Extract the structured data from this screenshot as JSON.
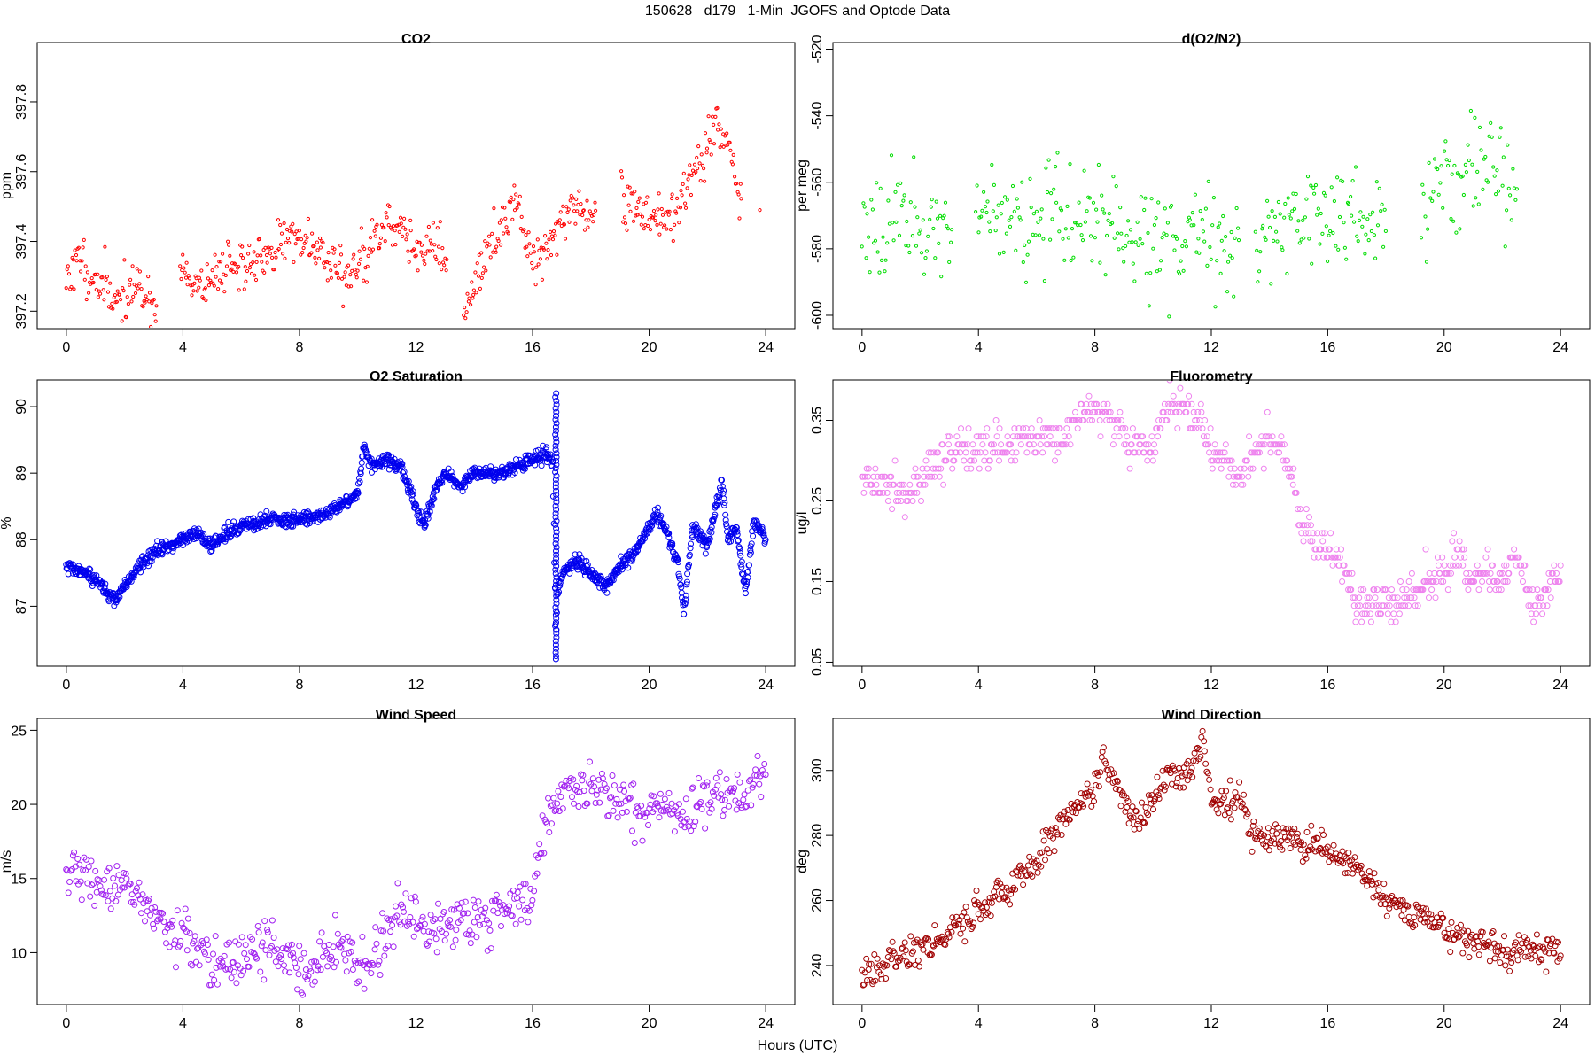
{
  "page": {
    "title": "150628   d179   1-Min  JGOFS and Optode Data",
    "xlabel": "Hours (UTC)"
  },
  "chart_data": [
    {
      "id": "co2",
      "type": "scatter",
      "title": "CO2",
      "ylabel": "ppm",
      "color": "#ff0000",
      "xlim": [
        -1,
        25
      ],
      "ylim": [
        397.15,
        397.97
      ],
      "xticks": [
        0,
        4,
        8,
        12,
        16,
        20,
        24
      ],
      "yticks": [
        397.2,
        397.4,
        397.6,
        397.8
      ],
      "ytick_labels": [
        "397.2",
        "397.4",
        "397.6",
        "397.8"
      ],
      "ytick_rotated": true,
      "point_radius": 1.6,
      "gaps": [
        [
          3.1,
          3.9
        ],
        [
          13.1,
          13.6
        ],
        [
          18.2,
          19.0
        ],
        [
          23.2,
          23.8
        ]
      ],
      "x": [
        0.0,
        0.5,
        1.0,
        1.5,
        2.0,
        2.5,
        3.0,
        4.0,
        4.5,
        5.0,
        5.5,
        6.0,
        6.5,
        7.0,
        7.5,
        8.0,
        8.5,
        9.0,
        9.5,
        10.0,
        10.5,
        11.0,
        11.5,
        12.0,
        12.5,
        13.0,
        13.7,
        14.0,
        14.5,
        15.0,
        15.5,
        16.0,
        16.5,
        17.0,
        17.5,
        18.0,
        19.0,
        19.5,
        20.0,
        20.5,
        21.0,
        21.5,
        22.0,
        22.3,
        22.7,
        23.0,
        23.8
      ],
      "values": [
        397.3,
        397.35,
        397.28,
        397.25,
        397.24,
        397.29,
        397.18,
        397.33,
        397.27,
        397.3,
        397.34,
        397.35,
        397.32,
        397.37,
        397.41,
        397.4,
        397.4,
        397.36,
        397.3,
        397.34,
        397.38,
        397.46,
        397.45,
        397.36,
        397.4,
        397.35,
        397.19,
        397.28,
        397.37,
        397.45,
        397.52,
        397.35,
        397.38,
        397.46,
        397.51,
        397.47,
        397.51,
        397.5,
        397.47,
        397.48,
        397.5,
        397.6,
        397.65,
        397.75,
        397.7,
        397.55,
        397.49
      ],
      "noise": 0.035,
      "seed": 11,
      "density": 30
    },
    {
      "id": "do2n2",
      "type": "scatter",
      "title": "d(O2/N2)",
      "ylabel": "per meg",
      "color": "#00dd00",
      "xlim": [
        -1,
        25
      ],
      "ylim": [
        -604,
        -518
      ],
      "xticks": [
        0,
        4,
        8,
        12,
        16,
        20,
        24
      ],
      "yticks": [
        -600,
        -580,
        -560,
        -540,
        -520
      ],
      "ytick_labels": [
        "-600",
        "-580",
        "-560",
        "-540",
        "-520"
      ],
      "ytick_rotated": true,
      "point_radius": 1.6,
      "gaps": [
        [
          3.1,
          3.9
        ],
        [
          13.0,
          13.5
        ],
        [
          18.0,
          19.2
        ],
        [
          22.8,
          23.7
        ]
      ],
      "x": [
        0.0,
        1.0,
        2.0,
        3.0,
        4.0,
        5.0,
        6.0,
        7.0,
        8.0,
        9.0,
        10.0,
        11.0,
        12.0,
        13.0,
        13.6,
        14.5,
        15.5,
        16.5,
        17.5,
        18.0,
        19.3,
        20.0,
        20.5,
        21.0,
        21.5,
        22.0,
        22.5
      ],
      "values": [
        -569,
        -570,
        -571,
        -572,
        -572,
        -571,
        -569,
        -571,
        -572,
        -574,
        -576,
        -578,
        -577,
        -578,
        -577,
        -574,
        -571,
        -568,
        -569,
        -570,
        -565,
        -563,
        -560,
        -555,
        -553,
        -556,
        -562
      ],
      "noise": 8,
      "seed": 23,
      "density": 22
    },
    {
      "id": "o2sat",
      "type": "scatter",
      "title": "O2 Saturation",
      "ylabel": "%",
      "color": "#0000ee",
      "xlim": [
        -1,
        25
      ],
      "ylim": [
        86.1,
        90.4
      ],
      "xticks": [
        0,
        4,
        8,
        12,
        16,
        20,
        24
      ],
      "yticks": [
        87,
        88,
        89,
        90
      ],
      "ytick_labels": [
        "87",
        "88",
        "89",
        "90"
      ],
      "ytick_rotated": true,
      "point_radius": 3,
      "gaps": [],
      "x": [
        0.0,
        0.5,
        1.0,
        1.7,
        2.0,
        2.5,
        3.0,
        4.0,
        4.5,
        5.0,
        5.5,
        6.0,
        7.0,
        8.0,
        9.0,
        10.0,
        10.2,
        10.5,
        11.0,
        11.5,
        12.0,
        12.3,
        12.7,
        13.0,
        13.5,
        14.0,
        15.0,
        15.5,
        16.0,
        16.5,
        16.7,
        16.8,
        16.85,
        17.0,
        17.5,
        18.0,
        18.5,
        19.0,
        19.5,
        20.0,
        20.3,
        20.6,
        21.0,
        21.2,
        21.5,
        22.0,
        22.5,
        22.7,
        23.0,
        23.3,
        23.6,
        24.0
      ],
      "values": [
        87.6,
        87.5,
        87.4,
        87.1,
        87.3,
        87.6,
        87.8,
        88.0,
        88.1,
        87.9,
        88.1,
        88.2,
        88.3,
        88.3,
        88.4,
        88.7,
        89.4,
        89.1,
        89.2,
        89.1,
        88.5,
        88.2,
        88.8,
        89.0,
        88.8,
        89.0,
        89.0,
        89.1,
        89.2,
        89.3,
        89.1,
        86.3,
        87.2,
        87.5,
        87.7,
        87.5,
        87.3,
        87.6,
        87.8,
        88.2,
        88.4,
        88.1,
        87.6,
        86.9,
        88.2,
        87.9,
        88.9,
        88.0,
        88.2,
        87.2,
        88.3,
        88.0
      ],
      "noise": 0.05,
      "seed": 37,
      "density": 60,
      "vertical_spike": {
        "x": 16.8,
        "y_from": 86.25,
        "y_to": 90.2
      }
    },
    {
      "id": "fluor",
      "type": "scatter",
      "title": "Fluorometry",
      "ylabel": "ug/l",
      "color": "#ee82ee",
      "xlim": [
        -1,
        25
      ],
      "ylim": [
        0.045,
        0.4
      ],
      "xticks": [
        0,
        4,
        8,
        12,
        16,
        20,
        24
      ],
      "yticks": [
        0.05,
        0.15,
        0.25,
        0.35
      ],
      "ytick_labels": [
        "0.05",
        "0.15",
        "0.25",
        "0.35"
      ],
      "ytick_rotated": true,
      "point_radius": 3,
      "quantize": 0.01,
      "gaps": [],
      "x": [
        0.0,
        1.0,
        2.0,
        2.7,
        3.3,
        4.0,
        5.0,
        6.0,
        7.0,
        7.5,
        8.0,
        8.5,
        9.0,
        10.0,
        10.5,
        11.0,
        11.5,
        12.0,
        12.5,
        13.0,
        13.5,
        14.0,
        14.5,
        15.0,
        15.5,
        16.0,
        16.5,
        17.0,
        18.0,
        19.0,
        20.0,
        20.5,
        21.0,
        21.5,
        22.0,
        22.5,
        23.0,
        23.5,
        24.0
      ],
      "values": [
        0.28,
        0.26,
        0.27,
        0.3,
        0.32,
        0.31,
        0.32,
        0.33,
        0.33,
        0.36,
        0.36,
        0.36,
        0.32,
        0.32,
        0.37,
        0.37,
        0.36,
        0.31,
        0.3,
        0.28,
        0.32,
        0.32,
        0.31,
        0.24,
        0.2,
        0.19,
        0.18,
        0.12,
        0.12,
        0.13,
        0.17,
        0.18,
        0.15,
        0.16,
        0.15,
        0.18,
        0.12,
        0.13,
        0.17
      ],
      "noise": 0.012,
      "seed": 51,
      "density": 30
    },
    {
      "id": "windspeed",
      "type": "scatter",
      "title": "Wind Speed",
      "ylabel": "m/s",
      "color": "#a020f0",
      "xlim": [
        -1,
        25
      ],
      "ylim": [
        6.5,
        25.8
      ],
      "xticks": [
        0,
        4,
        8,
        12,
        16,
        20,
        24
      ],
      "yticks": [
        10,
        15,
        20,
        25
      ],
      "ytick_labels": [
        "10",
        "15",
        "20",
        "25"
      ],
      "ytick_rotated": false,
      "point_radius": 3,
      "gaps": [],
      "x": [
        0.0,
        1.0,
        2.0,
        3.0,
        4.0,
        5.0,
        5.5,
        6.0,
        6.5,
        7.0,
        7.5,
        8.0,
        8.5,
        9.0,
        9.5,
        10.0,
        10.5,
        11.0,
        11.5,
        12.0,
        13.0,
        14.0,
        15.0,
        16.0,
        16.5,
        17.0,
        18.0,
        19.0,
        19.5,
        20.0,
        21.0,
        22.0,
        23.0,
        24.0
      ],
      "values": [
        16,
        14.5,
        14.5,
        12.5,
        11,
        9.5,
        9.5,
        10,
        9.5,
        10.5,
        9.5,
        9.0,
        8.5,
        10.5,
        10.5,
        9.0,
        9.0,
        11,
        13,
        12,
        12,
        12.5,
        13,
        13,
        19,
        21,
        21,
        20.5,
        19.5,
        20,
        19,
        20.5,
        20.5,
        22
      ],
      "noise": 0.8,
      "seed": 67,
      "density": 26
    },
    {
      "id": "winddir",
      "type": "scatter",
      "title": "Wind Direction",
      "ylabel": "deg",
      "color": "#a00000",
      "xlim": [
        -1,
        25
      ],
      "ylim": [
        228,
        316
      ],
      "xticks": [
        0,
        4,
        8,
        12,
        16,
        20,
        24
      ],
      "yticks": [
        240,
        260,
        280,
        300
      ],
      "ytick_labels": [
        "240",
        "260",
        "280",
        "300"
      ],
      "ytick_rotated": true,
      "point_radius": 3,
      "gaps": [],
      "x": [
        0.0,
        1.0,
        2.0,
        3.0,
        4.0,
        5.0,
        6.0,
        7.0,
        7.5,
        8.0,
        8.3,
        9.0,
        9.5,
        10.0,
        10.5,
        11.0,
        11.5,
        11.7,
        12.0,
        12.5,
        13.0,
        13.5,
        14.0,
        15.0,
        16.0,
        17.0,
        18.0,
        19.0,
        20.0,
        21.0,
        22.0,
        23.0,
        24.0
      ],
      "values": [
        236,
        242,
        245,
        250,
        256,
        264,
        273,
        285,
        290,
        295,
        303,
        291,
        284,
        291,
        298,
        298,
        305,
        309,
        292,
        290,
        290,
        279,
        279,
        278,
        276,
        270,
        260,
        256,
        251,
        247,
        244,
        246,
        243
      ],
      "noise": 2.4,
      "seed": 79,
      "density": 28
    }
  ]
}
